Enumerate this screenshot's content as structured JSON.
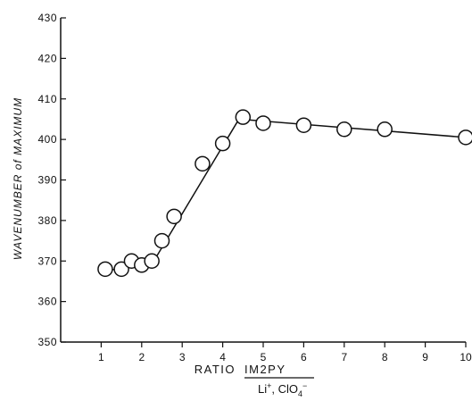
{
  "chart_data": {
    "type": "scatter",
    "xlabel": "RATIO",
    "xlabel_fraction": {
      "numerator": "IM2PY",
      "denominator": "Li",
      "denominator_sup": "+",
      "denominator_rest": ", ClO",
      "denominator_sub_sup": "4",
      "denominator_sup2": "−"
    },
    "ylabel": "WAVENUMBER of MAXIMUM",
    "xlim": [
      0,
      10
    ],
    "ylim": [
      350,
      430
    ],
    "x_ticks": [
      1,
      2,
      3,
      4,
      5,
      6,
      7,
      8,
      9,
      10
    ],
    "y_ticks": [
      350,
      360,
      370,
      380,
      390,
      400,
      410,
      420,
      430
    ],
    "grid": false,
    "series": [
      {
        "points": [
          {
            "x": 1.1,
            "y": 368
          },
          {
            "x": 1.5,
            "y": 368
          },
          {
            "x": 1.75,
            "y": 370
          },
          {
            "x": 2.0,
            "y": 369
          },
          {
            "x": 2.25,
            "y": 370
          },
          {
            "x": 2.5,
            "y": 375
          },
          {
            "x": 2.8,
            "y": 381
          },
          {
            "x": 3.5,
            "y": 394
          },
          {
            "x": 4.0,
            "y": 399
          },
          {
            "x": 4.5,
            "y": 405.5
          },
          {
            "x": 5.0,
            "y": 404
          },
          {
            "x": 6.0,
            "y": 403.5
          },
          {
            "x": 7.0,
            "y": 402.5
          },
          {
            "x": 8.0,
            "y": 402.5
          },
          {
            "x": 10.0,
            "y": 400.5
          }
        ],
        "fit_line": [
          {
            "x": 1.1,
            "y": 367.5
          },
          {
            "x": 2.3,
            "y": 370
          },
          {
            "x": 4.4,
            "y": 405
          },
          {
            "x": 10.0,
            "y": 400.5
          }
        ]
      }
    ]
  }
}
